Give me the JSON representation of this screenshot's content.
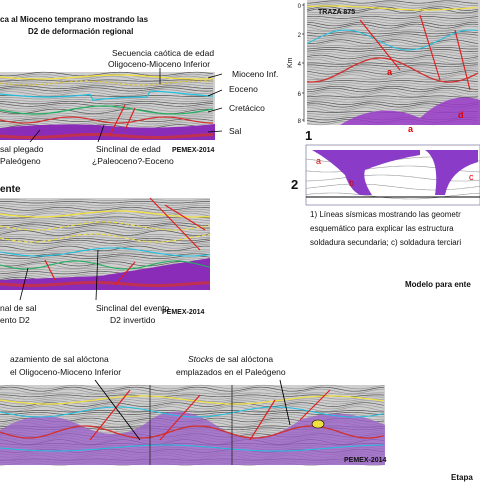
{
  "figure": {
    "panel_a": {
      "title_lines": [
        "ca al Mioceno temprano mostrando las",
        "D2 de deformación regional"
      ],
      "top_label": [
        "Secuencia caótica de edad",
        "Oligoceno-Mioceno Inferior"
      ],
      "side_labels": [
        "Mioceno Inf.",
        "Eoceno",
        "Cretácico",
        "Sal"
      ],
      "bottom_left": [
        "sal plegado",
        "Paleógeno"
      ],
      "bottom_mid": [
        "Sinclinal de edad",
        "¿Paleoceno?-Eoceno"
      ],
      "credit": "PEMEX-2014"
    },
    "panel_b": {
      "heading": "ente",
      "bottom_left": [
        "nal de sal",
        "ento D2"
      ],
      "bottom_mid": [
        "Sinclinal del evento",
        "D2 invertido"
      ],
      "credit": "PEMEX-2014"
    },
    "panel_c": {
      "left_label": [
        "azamiento de sal alóctona",
        "el Oligoceno-Mioceno Inferior"
      ],
      "right_label_italic": "Stocks",
      "right_label": [
        " de sal alóctona",
        "emplazados en el Paleógeno"
      ],
      "credit": "PEMEX-2014"
    },
    "traza": {
      "label": "TRAZA 875",
      "axis_label": "Km",
      "ticks": [
        "0",
        "2",
        "4",
        "6",
        "8"
      ],
      "panel_number": "1",
      "letters": [
        "a",
        "a",
        "d"
      ]
    },
    "schematic": {
      "panel_number": "2",
      "letters": [
        "a",
        "b",
        "c"
      ]
    },
    "caption": [
      "1) Líneas sísmicas mostrando las geometr",
      "esquemático para explicar las estructura",
      "soldadura secundaria; c) soldadura terciari"
    ],
    "model_heading": "Modelo para ente",
    "stage_label": "Etapa"
  }
}
